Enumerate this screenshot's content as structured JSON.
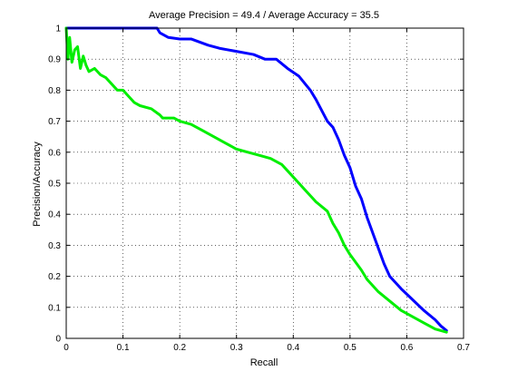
{
  "chart_data": {
    "type": "line",
    "title": "Average Precision = 49.4 / Average Accuracy = 35.5",
    "xlabel": "Recall",
    "ylabel": "Precision/Accuracy",
    "xlim": [
      0,
      0.7
    ],
    "ylim": [
      0,
      1
    ],
    "xticks": [
      "0",
      "0.1",
      "0.2",
      "0.3",
      "0.4",
      "0.5",
      "0.6",
      "0.7"
    ],
    "yticks": [
      "0",
      "0.1",
      "0.2",
      "0.3",
      "0.4",
      "0.5",
      "0.6",
      "0.7",
      "0.8",
      "0.9",
      "1"
    ],
    "grid": true,
    "series": [
      {
        "color": "#0000ff",
        "points": [
          [
            0.0,
            1.0
          ],
          [
            0.16,
            1.0
          ],
          [
            0.165,
            0.985
          ],
          [
            0.18,
            0.97
          ],
          [
            0.2,
            0.965
          ],
          [
            0.22,
            0.965
          ],
          [
            0.25,
            0.945
          ],
          [
            0.27,
            0.935
          ],
          [
            0.3,
            0.925
          ],
          [
            0.33,
            0.915
          ],
          [
            0.35,
            0.9
          ],
          [
            0.37,
            0.9
          ],
          [
            0.39,
            0.87
          ],
          [
            0.41,
            0.845
          ],
          [
            0.43,
            0.8
          ],
          [
            0.44,
            0.77
          ],
          [
            0.46,
            0.7
          ],
          [
            0.47,
            0.68
          ],
          [
            0.48,
            0.64
          ],
          [
            0.49,
            0.59
          ],
          [
            0.5,
            0.55
          ],
          [
            0.51,
            0.49
          ],
          [
            0.52,
            0.45
          ],
          [
            0.53,
            0.39
          ],
          [
            0.54,
            0.34
          ],
          [
            0.55,
            0.29
          ],
          [
            0.56,
            0.24
          ],
          [
            0.57,
            0.2
          ],
          [
            0.59,
            0.16
          ],
          [
            0.61,
            0.125
          ],
          [
            0.63,
            0.09
          ],
          [
            0.65,
            0.06
          ],
          [
            0.66,
            0.04
          ],
          [
            0.67,
            0.025
          ]
        ]
      },
      {
        "color": "#00ee00",
        "points": [
          [
            0.0,
            1.0
          ],
          [
            0.003,
            0.9
          ],
          [
            0.006,
            0.97
          ],
          [
            0.01,
            0.89
          ],
          [
            0.015,
            0.93
          ],
          [
            0.02,
            0.94
          ],
          [
            0.025,
            0.87
          ],
          [
            0.03,
            0.91
          ],
          [
            0.035,
            0.88
          ],
          [
            0.04,
            0.86
          ],
          [
            0.05,
            0.87
          ],
          [
            0.06,
            0.85
          ],
          [
            0.07,
            0.84
          ],
          [
            0.08,
            0.82
          ],
          [
            0.09,
            0.8
          ],
          [
            0.1,
            0.8
          ],
          [
            0.11,
            0.78
          ],
          [
            0.12,
            0.76
          ],
          [
            0.13,
            0.75
          ],
          [
            0.15,
            0.74
          ],
          [
            0.165,
            0.72
          ],
          [
            0.17,
            0.71
          ],
          [
            0.19,
            0.71
          ],
          [
            0.2,
            0.7
          ],
          [
            0.22,
            0.69
          ],
          [
            0.24,
            0.67
          ],
          [
            0.26,
            0.65
          ],
          [
            0.28,
            0.63
          ],
          [
            0.3,
            0.61
          ],
          [
            0.32,
            0.6
          ],
          [
            0.34,
            0.59
          ],
          [
            0.36,
            0.58
          ],
          [
            0.38,
            0.56
          ],
          [
            0.39,
            0.54
          ],
          [
            0.41,
            0.5
          ],
          [
            0.42,
            0.48
          ],
          [
            0.44,
            0.44
          ],
          [
            0.46,
            0.41
          ],
          [
            0.47,
            0.37
          ],
          [
            0.48,
            0.34
          ],
          [
            0.49,
            0.3
          ],
          [
            0.5,
            0.27
          ],
          [
            0.52,
            0.22
          ],
          [
            0.53,
            0.19
          ],
          [
            0.55,
            0.15
          ],
          [
            0.57,
            0.12
          ],
          [
            0.59,
            0.09
          ],
          [
            0.61,
            0.07
          ],
          [
            0.63,
            0.05
          ],
          [
            0.65,
            0.03
          ],
          [
            0.67,
            0.02
          ]
        ]
      }
    ]
  }
}
